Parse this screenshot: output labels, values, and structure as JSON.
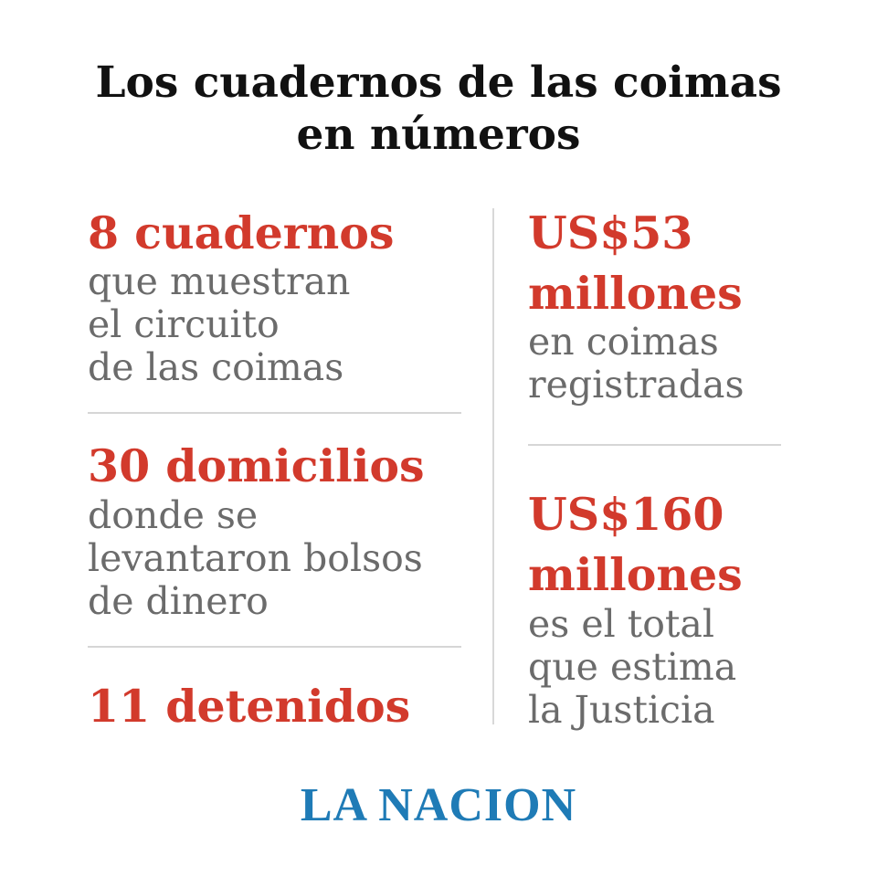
{
  "title_lines": [
    "Los cuadernos de las coimas",
    "en números"
  ],
  "left_column": [
    {
      "headline_lines": [
        "8 cuadernos"
      ],
      "body_lines": [
        "que muestran",
        "el circuito",
        "de las coimas"
      ]
    },
    {
      "headline_lines": [
        "30 domicilios"
      ],
      "body_lines": [
        "donde se",
        "levantaron bolsos",
        "de dinero"
      ]
    },
    {
      "headline_lines": [
        "11 detenidos"
      ],
      "body_lines": []
    }
  ],
  "right_column": [
    {
      "headline_lines": [
        "US$53",
        "millones"
      ],
      "body_lines": [
        "en coimas",
        "registradas"
      ]
    },
    {
      "headline_lines": [
        "US$160",
        "millones"
      ],
      "body_lines": [
        "es el total",
        "que estima",
        "la Justicia"
      ]
    }
  ],
  "logo": "LA NACION"
}
